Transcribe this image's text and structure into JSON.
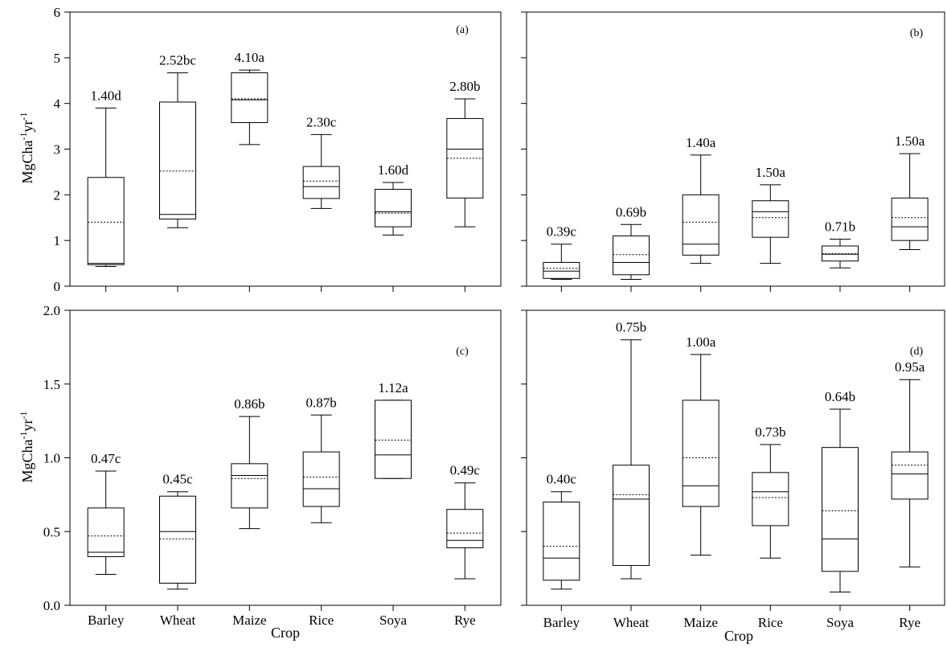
{
  "chart_data": [
    {
      "type": "box",
      "panel": "(a)",
      "xlabel": "",
      "ylabel": "MgCha-1yr-1",
      "ylim": [
        0,
        6
      ],
      "yticks": [
        "0",
        "1",
        "2",
        "3",
        "4",
        "5",
        "6"
      ],
      "categories": [
        "Barley",
        "Wheat",
        "Maize",
        "Rice",
        "Soya",
        "Rye"
      ],
      "boxes": [
        {
          "min": 0.43,
          "q1": 0.47,
          "median": 0.5,
          "q3": 2.38,
          "max": 3.9,
          "mean": 1.4,
          "label": "1.40d"
        },
        {
          "min": 1.28,
          "q1": 1.47,
          "median": 1.57,
          "q3": 4.03,
          "max": 4.67,
          "mean": 2.52,
          "label": "2.52bc"
        },
        {
          "min": 3.1,
          "q1": 3.58,
          "median": 4.08,
          "q3": 4.67,
          "max": 4.73,
          "mean": 4.1,
          "label": "4.10a"
        },
        {
          "min": 1.7,
          "q1": 1.92,
          "median": 2.18,
          "q3": 2.62,
          "max": 3.32,
          "mean": 2.3,
          "label": "2.30c"
        },
        {
          "min": 1.12,
          "q1": 1.3,
          "median": 1.63,
          "q3": 2.12,
          "max": 2.27,
          "mean": 1.6,
          "label": "1.60d"
        },
        {
          "min": 1.3,
          "q1": 1.93,
          "median": 3.0,
          "q3": 3.67,
          "max": 4.1,
          "mean": 2.8,
          "label": "2.80b"
        }
      ]
    },
    {
      "type": "box",
      "panel": "(b)",
      "xlabel": "",
      "ylabel": "",
      "ylim": [
        0,
        6
      ],
      "yticks": [],
      "categories": [
        "Barley",
        "Wheat",
        "Maize",
        "Rice",
        "Soya",
        "Rye"
      ],
      "boxes": [
        {
          "min": 0.15,
          "q1": 0.17,
          "median": 0.33,
          "q3": 0.52,
          "max": 0.92,
          "mean": 0.39,
          "label": "0.39c"
        },
        {
          "min": 0.15,
          "q1": 0.25,
          "median": 0.52,
          "q3": 1.1,
          "max": 1.35,
          "mean": 0.69,
          "label": "0.69b"
        },
        {
          "min": 0.5,
          "q1": 0.68,
          "median": 0.92,
          "q3": 2.0,
          "max": 2.87,
          "mean": 1.4,
          "label": "1.40a"
        },
        {
          "min": 0.5,
          "q1": 1.07,
          "median": 1.63,
          "q3": 1.87,
          "max": 2.22,
          "mean": 1.5,
          "label": "1.50a"
        },
        {
          "min": 0.4,
          "q1": 0.55,
          "median": 0.7,
          "q3": 0.88,
          "max": 1.03,
          "mean": 0.71,
          "label": "0.71b"
        },
        {
          "min": 0.8,
          "q1": 1.0,
          "median": 1.3,
          "q3": 1.93,
          "max": 2.9,
          "mean": 1.5,
          "label": "1.50a"
        }
      ]
    },
    {
      "type": "box",
      "panel": "(c)",
      "xlabel": "Crop",
      "ylabel": "MgCha-1yr-1",
      "ylim": [
        0,
        2
      ],
      "yticks": [
        "0.0",
        "0.5",
        "1.0",
        "1.5",
        "2.0"
      ],
      "categories": [
        "Barley",
        "Wheat",
        "Maize",
        "Rice",
        "Soya",
        "Rye"
      ],
      "boxes": [
        {
          "min": 0.21,
          "q1": 0.33,
          "median": 0.36,
          "q3": 0.66,
          "max": 0.91,
          "mean": 0.47,
          "label": "0.47c"
        },
        {
          "min": 0.11,
          "q1": 0.15,
          "median": 0.5,
          "q3": 0.74,
          "max": 0.77,
          "mean": 0.45,
          "label": "0.45c"
        },
        {
          "min": 0.52,
          "q1": 0.66,
          "median": 0.88,
          "q3": 0.96,
          "max": 1.28,
          "mean": 0.86,
          "label": "0.86b"
        },
        {
          "min": 0.56,
          "q1": 0.67,
          "median": 0.79,
          "q3": 1.04,
          "max": 1.29,
          "mean": 0.87,
          "label": "0.87b"
        },
        {
          "min": 0.86,
          "q1": 0.86,
          "median": 1.02,
          "q3": 1.39,
          "max": 1.39,
          "mean": 1.12,
          "label": "1.12a"
        },
        {
          "min": 0.18,
          "q1": 0.39,
          "median": 0.44,
          "q3": 0.65,
          "max": 0.83,
          "mean": 0.49,
          "label": "0.49c"
        }
      ]
    },
    {
      "type": "box",
      "panel": "(d)",
      "xlabel": "Crop",
      "ylabel": "",
      "ylim": [
        0,
        2
      ],
      "yticks": [],
      "categories": [
        "Barley",
        "Wheat",
        "Maize",
        "Rice",
        "Soya",
        "Rye"
      ],
      "boxes": [
        {
          "min": 0.11,
          "q1": 0.17,
          "median": 0.32,
          "q3": 0.7,
          "max": 0.77,
          "mean": 0.4,
          "label": "0.40c"
        },
        {
          "min": 0.18,
          "q1": 0.27,
          "median": 0.72,
          "q3": 0.95,
          "max": 1.8,
          "mean": 0.75,
          "label": "0.75b"
        },
        {
          "min": 0.34,
          "q1": 0.67,
          "median": 0.81,
          "q3": 1.39,
          "max": 1.7,
          "mean": 1.0,
          "label": "1.00a"
        },
        {
          "min": 0.32,
          "q1": 0.54,
          "median": 0.77,
          "q3": 0.9,
          "max": 1.09,
          "mean": 0.73,
          "label": "0.73b"
        },
        {
          "min": 0.09,
          "q1": 0.23,
          "median": 0.45,
          "q3": 1.07,
          "max": 1.33,
          "mean": 0.64,
          "label": "0.64b"
        },
        {
          "min": 0.26,
          "q1": 0.72,
          "median": 0.89,
          "q3": 1.04,
          "max": 1.53,
          "mean": 0.95,
          "label": "0.95a"
        }
      ]
    }
  ]
}
